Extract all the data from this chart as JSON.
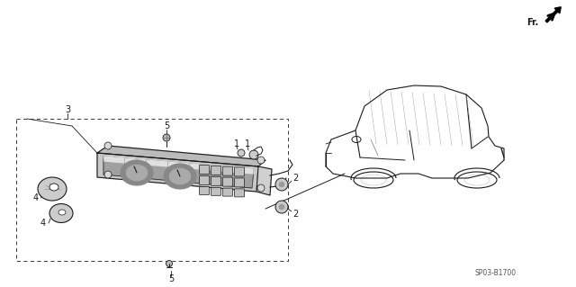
{
  "bg_color": "#ffffff",
  "part_number": "SP03-B1700",
  "fr_label": "Fr.",
  "label_fs": 7,
  "part_num_fs": 5.5,
  "line_color": "#1a1a1a",
  "gray_dark": "#555555",
  "gray_mid": "#888888",
  "gray_light": "#bbbbbb",
  "gray_fill": "#cccccc",
  "panel_fill": "#c8c8c8",
  "panel_inner": "#a0a0a0"
}
